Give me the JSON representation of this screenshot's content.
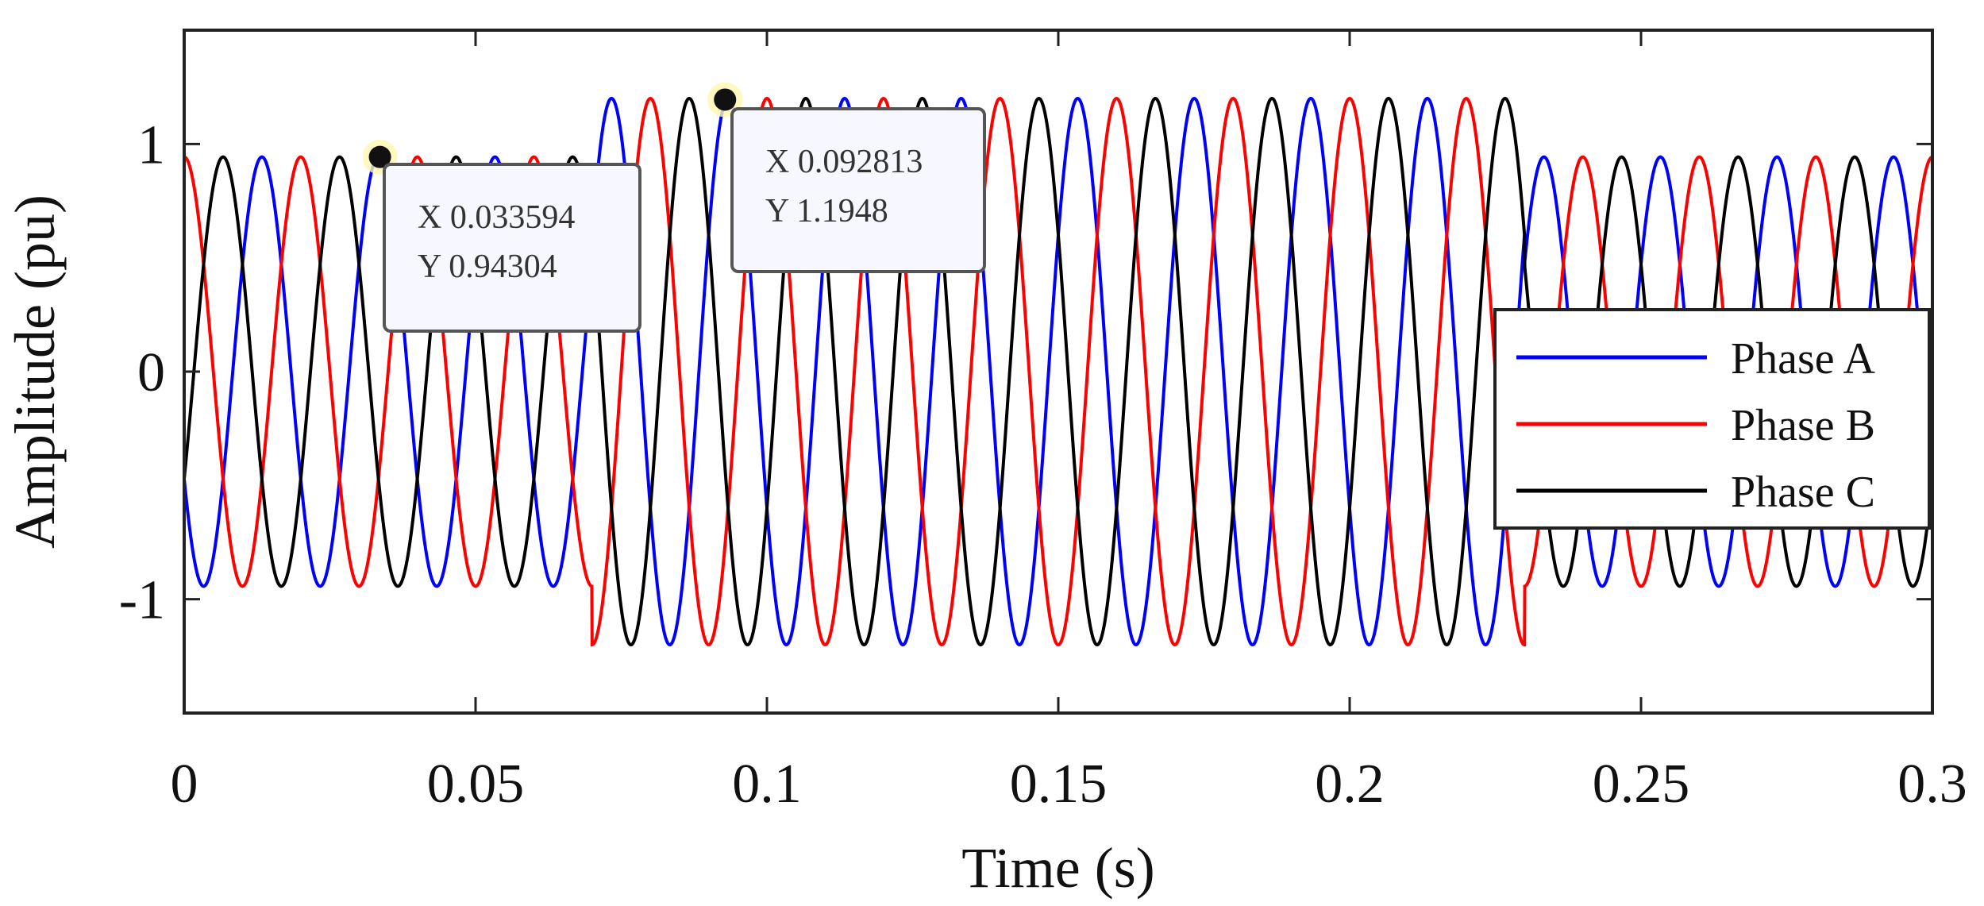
{
  "chart_data": {
    "type": "line",
    "title": "",
    "xlabel": "Time (s)",
    "ylabel": "Amplitude (pu)",
    "xlim": [
      0,
      0.3
    ],
    "ylim": [
      -1.5,
      1.5
    ],
    "x_ticks": [
      0,
      0.05,
      0.1,
      0.15,
      0.2,
      0.25,
      0.3
    ],
    "x_tick_labels": [
      "0",
      "0.05",
      "0.1",
      "0.15",
      "0.2",
      "0.25",
      "0.3"
    ],
    "y_ticks": [
      -1,
      0,
      1
    ],
    "y_tick_labels": [
      "-1",
      "0",
      "1"
    ],
    "grid": false,
    "legend_position": "right",
    "signal": {
      "frequency_hz": 50,
      "normal_amplitude": 0.943,
      "swell_amplitude": 1.2,
      "swell_start": 0.07,
      "swell_end": 0.23,
      "time_step": 5e-05
    },
    "series": [
      {
        "name": "Phase A",
        "color": "#0000ff",
        "phase_deg": -150
      },
      {
        "name": "Phase B",
        "color": "#ff0000",
        "phase_deg": 90
      },
      {
        "name": "Phase C",
        "color": "#000000",
        "phase_deg": -30
      }
    ],
    "datatips": [
      {
        "x": 0.033594,
        "y": 0.94304,
        "label_x": "X 0.033594",
        "label_y": "Y 0.94304"
      },
      {
        "x": 0.092813,
        "y": 1.1948,
        "label_x": "X 0.092813",
        "label_y": "Y 1.1948"
      }
    ]
  }
}
